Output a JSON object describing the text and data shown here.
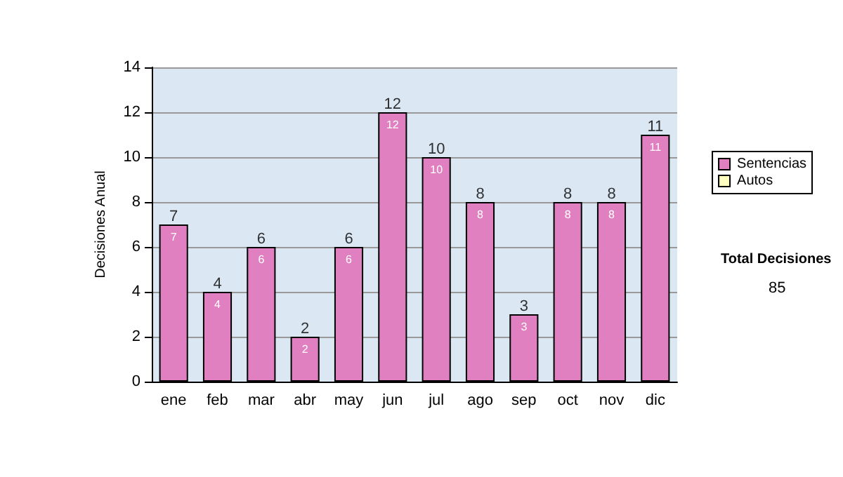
{
  "chart_data": {
    "type": "bar",
    "ylabel": "Decisiones Anual",
    "categories": [
      "ene",
      "feb",
      "mar",
      "abr",
      "may",
      "jun",
      "jul",
      "ago",
      "sep",
      "oct",
      "nov",
      "dic"
    ],
    "stacked": true,
    "series": [
      {
        "name": "Sentencias",
        "color": "#e080c0",
        "values": [
          7,
          4,
          6,
          2,
          6,
          12,
          10,
          8,
          3,
          8,
          8,
          11
        ],
        "value_labels": [
          "7",
          "4",
          "6",
          "2",
          "6",
          "12",
          "10",
          "8",
          "3",
          "8",
          "8",
          "11"
        ]
      },
      {
        "name": "Autos",
        "color": "#ffffc0",
        "values": [
          0,
          0,
          0,
          0,
          0,
          0,
          0,
          0,
          0,
          0,
          0,
          0
        ]
      }
    ],
    "totals": [
      "7",
      "4",
      "6",
      "2",
      "6",
      "12",
      "10",
      "8",
      "3",
      "8",
      "8",
      "11"
    ],
    "ylim": [
      0,
      14
    ],
    "yticks": [
      0,
      2,
      4,
      6,
      8,
      10,
      12,
      14
    ],
    "grid": "y",
    "legend": "right",
    "annotations": [
      "Total Decisiones",
      "85"
    ]
  }
}
